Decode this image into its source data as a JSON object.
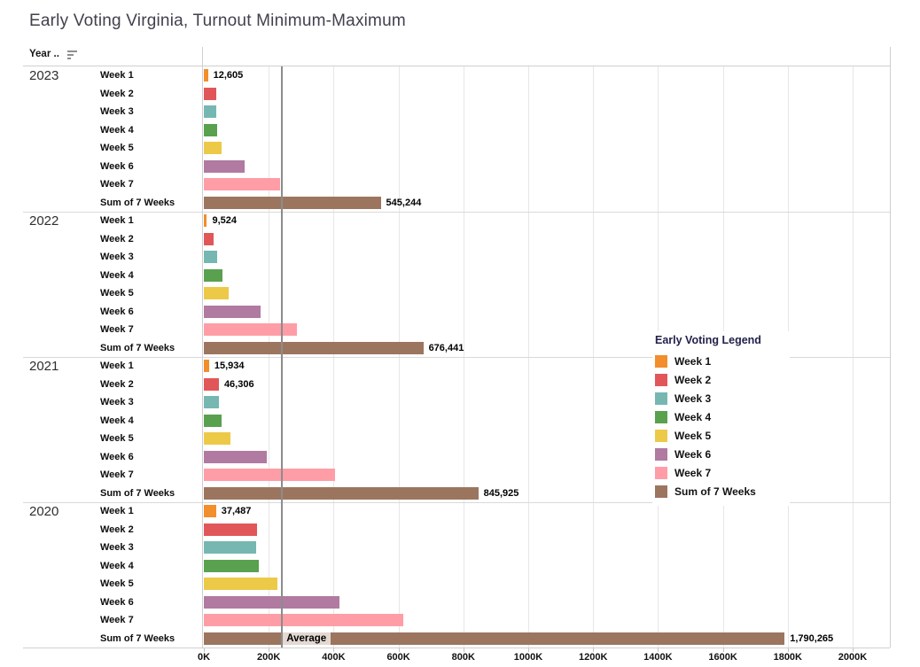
{
  "title": "Early Voting Virginia, Turnout Minimum-Maximum",
  "header": {
    "year_column_label": "Year ..",
    "sort_icon": "sort-descending-icon"
  },
  "legend": {
    "title": "Early Voting Legend",
    "items": [
      {
        "label": "Week 1",
        "color": "#F28E2B"
      },
      {
        "label": "Week 2",
        "color": "#E15759"
      },
      {
        "label": "Week 3",
        "color": "#76B7B2"
      },
      {
        "label": "Week 4",
        "color": "#59A14F"
      },
      {
        "label": "Week 5",
        "color": "#EDC948"
      },
      {
        "label": "Week 6",
        "color": "#B07AA1"
      },
      {
        "label": "Week 7",
        "color": "#FF9DA7"
      },
      {
        "label": "Sum of 7 Weeks",
        "color": "#9C755F"
      }
    ]
  },
  "chart_data": {
    "type": "bar",
    "orientation": "horizontal",
    "title": "Early Voting Virginia, Turnout Minimum-Maximum",
    "xlim": [
      0,
      2000000
    ],
    "x_tick_step": 200000,
    "x_tick_labels": [
      "0K",
      "200K",
      "400K",
      "600K",
      "800K",
      "1000K",
      "1200K",
      "1400K",
      "1600K",
      "1800K",
      "2000K"
    ],
    "grid": true,
    "legend_position": "right-overlay",
    "row_categories": [
      "Week 1",
      "Week 2",
      "Week 3",
      "Week 4",
      "Week 5",
      "Week 6",
      "Week 7",
      "Sum of 7 Weeks"
    ],
    "reference_line": {
      "label": "Average",
      "value": 241117
    },
    "groups": [
      {
        "year": "2023",
        "bars": [
          {
            "category": "Week 1",
            "value": 12605,
            "label": "12,605"
          },
          {
            "category": "Week 2",
            "value": 38000
          },
          {
            "category": "Week 3",
            "value": 37000
          },
          {
            "category": "Week 4",
            "value": 41000
          },
          {
            "category": "Week 5",
            "value": 55000
          },
          {
            "category": "Week 6",
            "value": 126000
          },
          {
            "category": "Week 7",
            "value": 235639
          },
          {
            "category": "Sum of 7 Weeks",
            "value": 545244,
            "label": "545,244"
          }
        ]
      },
      {
        "year": "2022",
        "bars": [
          {
            "category": "Week 1",
            "value": 9524,
            "label": "9,524"
          },
          {
            "category": "Week 2",
            "value": 31000
          },
          {
            "category": "Week 3",
            "value": 40000
          },
          {
            "category": "Week 4",
            "value": 57000
          },
          {
            "category": "Week 5",
            "value": 77000
          },
          {
            "category": "Week 6",
            "value": 176000
          },
          {
            "category": "Week 7",
            "value": 285917
          },
          {
            "category": "Sum of 7 Weeks",
            "value": 676441,
            "label": "676,441"
          }
        ]
      },
      {
        "year": "2021",
        "bars": [
          {
            "category": "Week 1",
            "value": 15934,
            "label": "15,934"
          },
          {
            "category": "Week 2",
            "value": 46306,
            "label": "46,306"
          },
          {
            "category": "Week 3",
            "value": 47000
          },
          {
            "category": "Week 4",
            "value": 56000
          },
          {
            "category": "Week 5",
            "value": 83000
          },
          {
            "category": "Week 6",
            "value": 193000
          },
          {
            "category": "Week 7",
            "value": 404685
          },
          {
            "category": "Sum of 7 Weeks",
            "value": 845925,
            "label": "845,925"
          }
        ]
      },
      {
        "year": "2020",
        "bars": [
          {
            "category": "Week 1",
            "value": 37487,
            "label": "37,487"
          },
          {
            "category": "Week 2",
            "value": 165000
          },
          {
            "category": "Week 3",
            "value": 160000
          },
          {
            "category": "Week 4",
            "value": 170000
          },
          {
            "category": "Week 5",
            "value": 226000
          },
          {
            "category": "Week 6",
            "value": 417000
          },
          {
            "category": "Week 7",
            "value": 614778
          },
          {
            "category": "Sum of 7 Weeks",
            "value": 1790265,
            "label": "1,790,265"
          }
        ]
      }
    ]
  }
}
